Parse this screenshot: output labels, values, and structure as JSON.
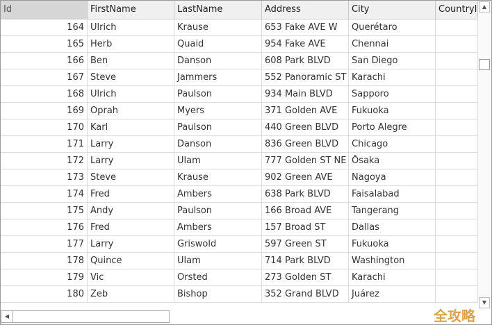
{
  "columns": [
    "Id",
    "FirstName",
    "LastName",
    "Address",
    "City",
    "CountryId"
  ],
  "rows": [
    [
      "164",
      "Ulrich",
      "Krause",
      "653 Fake AVE W",
      "Querétaro",
      ""
    ],
    [
      "165",
      "Herb",
      "Quaid",
      "954 Fake AVE",
      "Chennai",
      ""
    ],
    [
      "166",
      "Ben",
      "Danson",
      "608 Park BLVD",
      "San Diego",
      ""
    ],
    [
      "167",
      "Steve",
      "Jammers",
      "552 Panoramic ST",
      "Karachi",
      ""
    ],
    [
      "168",
      "Ulrich",
      "Paulson",
      "934 Main BLVD",
      "Sapporo",
      ""
    ],
    [
      "169",
      "Oprah",
      "Myers",
      "371 Golden AVE",
      "Fukuoka",
      ""
    ],
    [
      "170",
      "Karl",
      "Paulson",
      "440 Green BLVD",
      "Porto Alegre",
      ""
    ],
    [
      "171",
      "Larry",
      "Danson",
      "836 Green BLVD",
      "Chicago",
      ""
    ],
    [
      "172",
      "Larry",
      "Ulam",
      "777 Golden ST NE",
      "Ōsaka",
      ""
    ],
    [
      "173",
      "Steve",
      "Krause",
      "902 Green AVE",
      "Nagoya",
      ""
    ],
    [
      "174",
      "Fred",
      "Ambers",
      "638 Park BLVD",
      "Faisalabad",
      ""
    ],
    [
      "175",
      "Andy",
      "Paulson",
      "166 Broad AVE",
      "Tangerang",
      ""
    ],
    [
      "176",
      "Fred",
      "Ambers",
      "157 Broad ST",
      "Dallas",
      ""
    ],
    [
      "177",
      "Larry",
      "Griswold",
      "597 Green ST",
      "Fukuoka",
      ""
    ],
    [
      "178",
      "Quince",
      "Ulam",
      "714 Park BLVD",
      "Washington",
      ""
    ],
    [
      "179",
      "Vic",
      "Orsted",
      "273 Golden ST",
      "Karachi",
      ""
    ],
    [
      "180",
      "Zeb",
      "Bishop",
      "352 Grand BLVD",
      "Juárez",
      ""
    ]
  ],
  "scroll": {
    "up": "▲",
    "down": "▼",
    "left": "◀"
  },
  "watermark": "全攻略"
}
